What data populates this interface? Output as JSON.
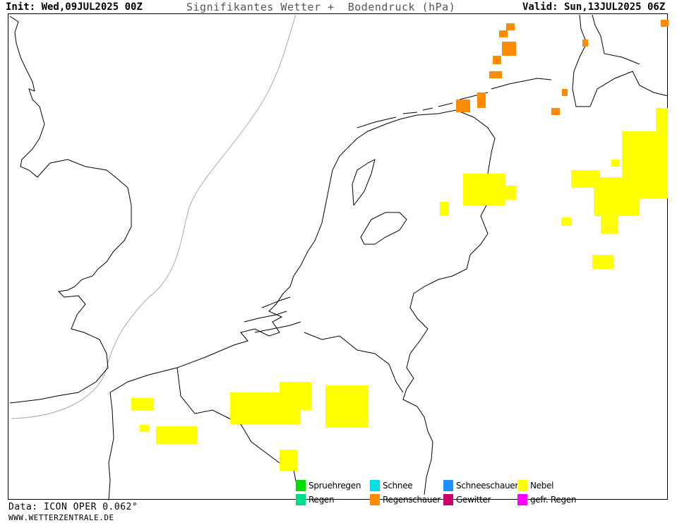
{
  "header": {
    "init": "Init: Wed,09JUL2025 00Z",
    "title": "Signifikantes Wetter +  Bodendruck (hPa)",
    "valid": "Valid: Sun,13JUL2025 06Z"
  },
  "legend": [
    {
      "label": "Spruehregen",
      "color": "#00dd00"
    },
    {
      "label": "Schnee",
      "color": "#00e0e0"
    },
    {
      "label": "Schneeschauer",
      "color": "#1e90ff"
    },
    {
      "label": "Nebel",
      "color": "#ffff00"
    },
    {
      "label": "Regen",
      "color": "#00dd88"
    },
    {
      "label": "Regenschauer",
      "color": "#ff8c00"
    },
    {
      "label": "Gewitter",
      "color": "#cc0066"
    },
    {
      "label": "gefr. Regen",
      "color": "#ff00ff"
    }
  ],
  "footer": {
    "data_source": "Data: ICON OPER 0.062°",
    "url": "WWW.WETTERZENTRALE.DE"
  },
  "colors": {
    "fog": "#ffff00",
    "showers": "#ff8c00",
    "coastline": "#000000",
    "isobar": "#aaaaaa"
  }
}
